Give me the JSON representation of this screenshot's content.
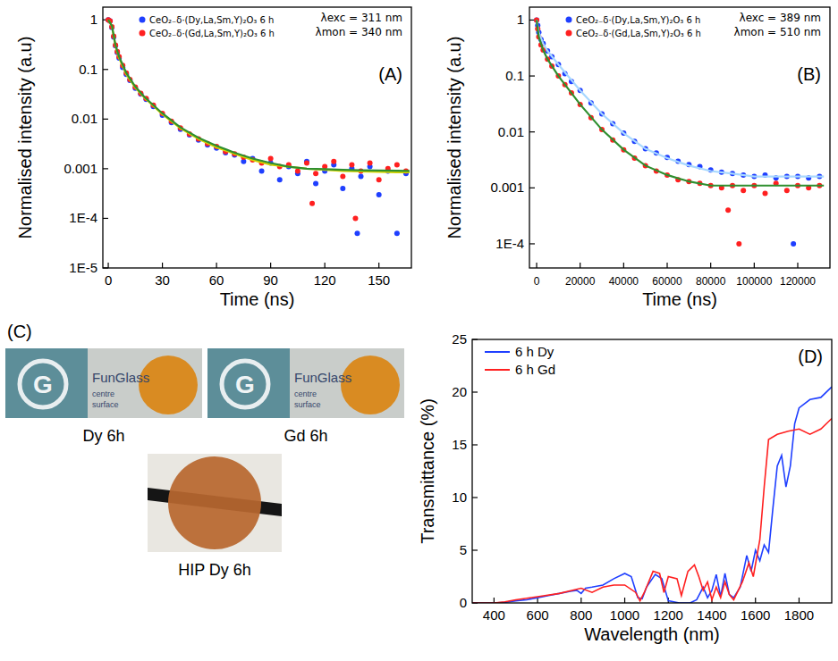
{
  "chart_data": [
    {
      "type": "scatter",
      "panel_label": "(A)",
      "annotations": [
        "λexc = 311 nm",
        "λmon = 340 nm"
      ],
      "xlabel": "Time (ns)",
      "ylabel": "Normalised intensity (a.u)",
      "log": "y",
      "legend": "top-left",
      "xlim": [
        -3,
        168
      ],
      "ylim": [
        1e-05,
        1.8
      ],
      "xticks": [
        0,
        30,
        60,
        90,
        120,
        150
      ],
      "yticks": [
        {
          "value": 1e-05,
          "label": "1E-5"
        },
        {
          "value": 0.0001,
          "label": "1E-4"
        },
        0.001,
        0.01,
        0.1,
        1
      ],
      "series": [
        {
          "name": "CeO₂₋δ·(Dy,La,Sm,Y)₂O₃ 6 h",
          "color": "#1f3fff",
          "marker": "circle",
          "x": [
            0,
            1,
            2,
            3,
            4,
            5,
            6,
            8,
            10,
            12,
            15,
            18,
            21,
            25,
            30,
            35,
            40,
            45,
            50,
            55,
            60,
            65,
            70,
            75,
            80,
            85,
            90,
            95,
            100,
            105,
            110,
            115,
            120,
            125,
            130,
            135,
            138,
            140,
            145,
            150,
            155,
            160,
            165
          ],
          "values": [
            1,
            0.95,
            0.7,
            0.45,
            0.3,
            0.22,
            0.17,
            0.11,
            0.08,
            0.06,
            0.042,
            0.032,
            0.025,
            0.018,
            0.012,
            0.0085,
            0.0062,
            0.0048,
            0.0038,
            0.003,
            0.0026,
            0.0021,
            0.0019,
            0.0014,
            0.0016,
            0.0009,
            0.0013,
            0.0006,
            0.0011,
            0.0008,
            0.0014,
            0.0005,
            0.0009,
            0.0012,
            0.0004,
            0.001,
            5e-05,
            0.0007,
            0.0011,
            0.0003,
            0.0009,
            5e-05,
            0.0008
          ]
        },
        {
          "name": "CeO₂₋δ·(Gd,La,Sm,Y)₂O₃ 6 h",
          "color": "#ff2020",
          "marker": "circle",
          "x": [
            0,
            1,
            2,
            3,
            4,
            5,
            6,
            8,
            10,
            12,
            15,
            18,
            21,
            25,
            30,
            35,
            40,
            45,
            50,
            55,
            60,
            65,
            70,
            75,
            80,
            85,
            90,
            95,
            100,
            105,
            110,
            113,
            115,
            120,
            125,
            130,
            135,
            137,
            140,
            145,
            150,
            155,
            160,
            165
          ],
          "values": [
            1,
            0.95,
            0.72,
            0.47,
            0.31,
            0.23,
            0.18,
            0.12,
            0.085,
            0.063,
            0.044,
            0.033,
            0.026,
            0.019,
            0.013,
            0.009,
            0.0066,
            0.005,
            0.004,
            0.0032,
            0.0028,
            0.0022,
            0.002,
            0.0017,
            0.0015,
            0.0013,
            0.0016,
            0.0011,
            0.0012,
            0.0009,
            0.0013,
            0.0002,
            0.0008,
            0.0011,
            0.0014,
            0.0007,
            0.0012,
            0.0001,
            0.0009,
            0.0013,
            0.0006,
            0.001,
            0.0012,
            0.0009
          ]
        },
        {
          "type": "line",
          "color": "#d4d400",
          "line_style": "solid",
          "x": [
            0,
            2,
            4,
            6,
            10,
            15,
            20,
            30,
            40,
            50,
            60,
            70,
            80,
            90,
            100,
            110,
            120,
            130,
            140,
            150,
            160,
            167
          ],
          "values": [
            1,
            0.75,
            0.3,
            0.17,
            0.08,
            0.043,
            0.027,
            0.0125,
            0.0065,
            0.004,
            0.0027,
            0.002,
            0.0015,
            0.0012,
            0.0011,
            0.001,
            0.00095,
            0.0009,
            0.00088,
            0.00086,
            0.00085,
            0.00085
          ]
        },
        {
          "type": "line",
          "color": "#2f8f2f",
          "line_style": "solid",
          "x": [
            0,
            2,
            4,
            6,
            10,
            15,
            20,
            30,
            40,
            50,
            60,
            70,
            80,
            90,
            100,
            110,
            120,
            130,
            140,
            150,
            160,
            167
          ],
          "values": [
            1,
            0.76,
            0.31,
            0.18,
            0.085,
            0.045,
            0.028,
            0.013,
            0.0068,
            0.0042,
            0.0029,
            0.0021,
            0.0016,
            0.0013,
            0.0011,
            0.001,
            0.00098,
            0.00095,
            0.00093,
            0.00092,
            0.00091,
            0.0009
          ]
        }
      ]
    },
    {
      "type": "scatter",
      "panel_label": "(B)",
      "annotations": [
        "λexc = 389 nm",
        "λmon = 510 nm"
      ],
      "xlabel": "Time (ns)",
      "ylabel": "Normalised intensity (a.u)",
      "log": "y",
      "legend": "top-left",
      "xlim": [
        -3300,
        134800
      ],
      "ylim": [
        3.7e-05,
        1.7
      ],
      "xticks": [
        0,
        20000,
        40000,
        60000,
        80000,
        100000,
        120000
      ],
      "yticks": [
        {
          "value": 0.0001,
          "label": "1E-4"
        },
        0.001,
        0.01,
        0.1,
        1
      ],
      "series": [
        {
          "name": "CeO₂₋δ·(Dy,La,Sm,Y)₂O₃ 6 h",
          "color": "#1f3fff",
          "marker": "circle",
          "x": [
            0,
            500,
            1000,
            2000,
            3000,
            5000,
            7000,
            10000,
            13000,
            16000,
            20000,
            25000,
            30000,
            35000,
            40000,
            45000,
            50000,
            55000,
            60000,
            65000,
            70000,
            75000,
            80000,
            85000,
            90000,
            95000,
            100000,
            105000,
            110000,
            115000,
            118000,
            120000,
            125000,
            130000
          ],
          "values": [
            1,
            0.8,
            0.6,
            0.45,
            0.38,
            0.28,
            0.22,
            0.16,
            0.11,
            0.08,
            0.055,
            0.033,
            0.021,
            0.014,
            0.0095,
            0.0068,
            0.005,
            0.0042,
            0.0035,
            0.003,
            0.0026,
            0.0024,
            0.0021,
            0.0019,
            0.0018,
            0.0017,
            0.0016,
            0.0017,
            0.0015,
            0.0016,
            0.0001,
            0.0016,
            0.0015,
            0.0016
          ]
        },
        {
          "name": "CeO₂₋δ·(Gd,La,Sm,Y)₂O₃ 6 h",
          "color": "#ff2020",
          "marker": "circle",
          "x": [
            0,
            500,
            1000,
            2000,
            3000,
            5000,
            7000,
            10000,
            13000,
            16000,
            20000,
            25000,
            30000,
            35000,
            40000,
            45000,
            50000,
            55000,
            60000,
            65000,
            70000,
            75000,
            80000,
            85000,
            88000,
            90000,
            93000,
            95000,
            100000,
            105000,
            110000,
            115000,
            120000,
            125000,
            130000
          ],
          "values": [
            1,
            0.7,
            0.5,
            0.36,
            0.29,
            0.2,
            0.15,
            0.1,
            0.07,
            0.05,
            0.031,
            0.018,
            0.011,
            0.0072,
            0.0048,
            0.0034,
            0.0025,
            0.002,
            0.0017,
            0.0014,
            0.0013,
            0.0012,
            0.0011,
            0.001,
            0.0004,
            0.0011,
            0.0001,
            0.0009,
            0.0011,
            0.0008,
            0.0012,
            0.0009,
            0.0011,
            0.001,
            0.0011
          ]
        },
        {
          "type": "line",
          "color": "#a8d8ff",
          "line_style": "solid",
          "x": [
            0,
            1000,
            3000,
            5000,
            10000,
            20000,
            30000,
            40000,
            50000,
            60000,
            70000,
            80000,
            90000,
            100000,
            110000,
            120000,
            132000
          ],
          "values": [
            1,
            0.6,
            0.38,
            0.28,
            0.16,
            0.055,
            0.021,
            0.0095,
            0.005,
            0.0034,
            0.0025,
            0.002,
            0.0018,
            0.0016,
            0.0016,
            0.0016,
            0.0016
          ]
        },
        {
          "type": "line",
          "color": "#2f8f2f",
          "line_style": "solid",
          "x": [
            0,
            1000,
            3000,
            5000,
            10000,
            20000,
            30000,
            40000,
            50000,
            60000,
            70000,
            80000,
            90000,
            100000,
            110000,
            120000,
            132000
          ],
          "values": [
            1,
            0.5,
            0.29,
            0.2,
            0.1,
            0.031,
            0.011,
            0.0048,
            0.0025,
            0.0017,
            0.0013,
            0.0011,
            0.0011,
            0.0011,
            0.0011,
            0.0011,
            0.0011
          ]
        }
      ]
    },
    {
      "type": "line",
      "panel_label": "(D)",
      "xlabel": "Wavelength (nm)",
      "ylabel": "Transmittance (%)",
      "legend": "top-left",
      "xlim": [
        300,
        1950
      ],
      "ylim": [
        0,
        25
      ],
      "xticks": [
        400,
        600,
        800,
        1000,
        1200,
        1400,
        1600,
        1800
      ],
      "yticks": [
        0,
        5,
        10,
        15,
        20,
        25
      ],
      "series": [
        {
          "name": "6 h Dy",
          "color": "#1f3fff",
          "line_style": "solid",
          "x": [
            300,
            400,
            450,
            500,
            550,
            600,
            650,
            700,
            750,
            780,
            800,
            820,
            850,
            900,
            950,
            1000,
            1030,
            1060,
            1080,
            1100,
            1140,
            1170,
            1200,
            1250,
            1300,
            1330,
            1360,
            1380,
            1400,
            1420,
            1440,
            1460,
            1480,
            1500,
            1530,
            1560,
            1580,
            1600,
            1620,
            1640,
            1660,
            1680,
            1700,
            1720,
            1740,
            1760,
            1780,
            1800,
            1850,
            1900,
            1950
          ],
          "values": [
            0,
            0,
            0.05,
            0.2,
            0.3,
            0.5,
            0.7,
            0.9,
            1.1,
            1.2,
            0.9,
            1.4,
            1.5,
            1.7,
            2.3,
            2.8,
            2.5,
            0.5,
            0.4,
            1.5,
            2.7,
            2.3,
            0.2,
            0,
            0,
            0.3,
            1.5,
            0.5,
            1.2,
            2.7,
            0.6,
            2.8,
            0.8,
            0.5,
            1.5,
            4.5,
            3,
            5,
            4,
            5.5,
            4.8,
            9,
            13,
            14,
            11,
            13,
            17,
            18.5,
            19.3,
            19.5,
            20.5
          ]
        },
        {
          "name": "6 h Gd",
          "color": "#ff2020",
          "line_style": "solid",
          "x": [
            300,
            400,
            450,
            500,
            600,
            700,
            800,
            850,
            900,
            950,
            1000,
            1050,
            1070,
            1090,
            1130,
            1160,
            1180,
            1200,
            1240,
            1260,
            1290,
            1320,
            1340,
            1360,
            1380,
            1400,
            1420,
            1440,
            1460,
            1480,
            1500,
            1540,
            1570,
            1590,
            1620,
            1640,
            1660,
            1700,
            1750,
            1800,
            1850,
            1900,
            1950
          ],
          "values": [
            0,
            0,
            0.1,
            0.3,
            0.6,
            0.9,
            1.4,
            1.0,
            1.5,
            1.7,
            1.7,
            1.0,
            0.2,
            1.0,
            3.0,
            2.8,
            1.0,
            2.5,
            2.3,
            0.7,
            3.0,
            3.6,
            2.5,
            1.2,
            2.0,
            0.3,
            1.5,
            0.5,
            2.0,
            0.8,
            0.3,
            2.0,
            3.8,
            2.5,
            6,
            11,
            15.5,
            16,
            16.3,
            16.5,
            16,
            16.5,
            17.5
          ]
        }
      ]
    }
  ],
  "photo_panel": {
    "panel_label": "(C)",
    "photos": [
      {
        "caption": "Dy 6h",
        "logo_mark": "G",
        "logo_text": [
          "FunGlass",
          "centre",
          "surface"
        ]
      },
      {
        "caption": "Gd 6h",
        "logo_mark": "G",
        "logo_text": [
          "FunGlass",
          "centre",
          "surface"
        ]
      },
      {
        "caption": "HIP Dy 6h"
      }
    ]
  }
}
